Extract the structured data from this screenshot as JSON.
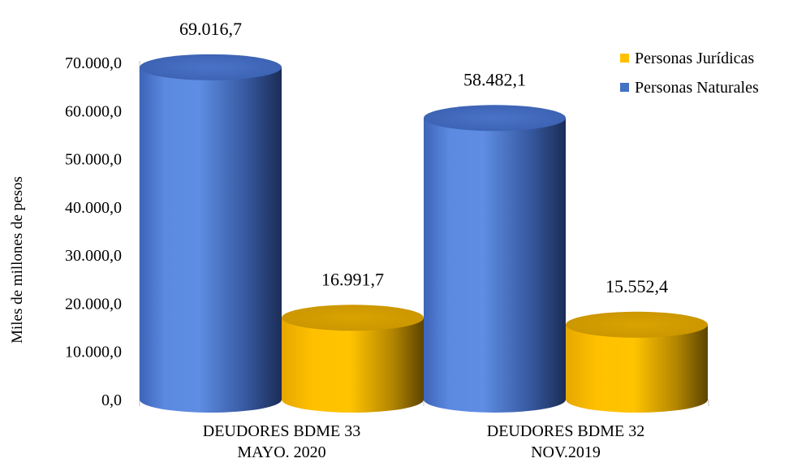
{
  "chart_data": {
    "type": "bar",
    "style": "3d-cylinder",
    "ylabel": "Miles de millones  de pesos",
    "ylim": [
      0,
      70000
    ],
    "yticks": [
      0,
      10000,
      20000,
      30000,
      40000,
      50000,
      60000,
      70000
    ],
    "ytick_labels": [
      "0,0",
      "10.000,0",
      "20.000,0",
      "30.000,0",
      "40.000,0",
      "50.000,0",
      "60.000,0",
      "70.000,0"
    ],
    "categories": [
      [
        "DEUDORES BDME 33",
        "MAYO. 2020"
      ],
      [
        "DEUDORES BDME 32",
        "NOV.2019"
      ]
    ],
    "series": [
      {
        "name": "Personas Naturales",
        "color": "#4472C4",
        "values": [
          69016.7,
          58482.1
        ],
        "labels": [
          "69.016,7",
          "58.482,1"
        ]
      },
      {
        "name": "Personas Jurídicas",
        "color": "#FFC000",
        "values": [
          16991.7,
          15552.4
        ],
        "labels": [
          "16.991,7",
          "15.552,4"
        ]
      }
    ],
    "legend": {
      "position": "top-right",
      "order": [
        "Personas Jurídicas",
        "Personas Naturales"
      ]
    },
    "grid": false
  }
}
